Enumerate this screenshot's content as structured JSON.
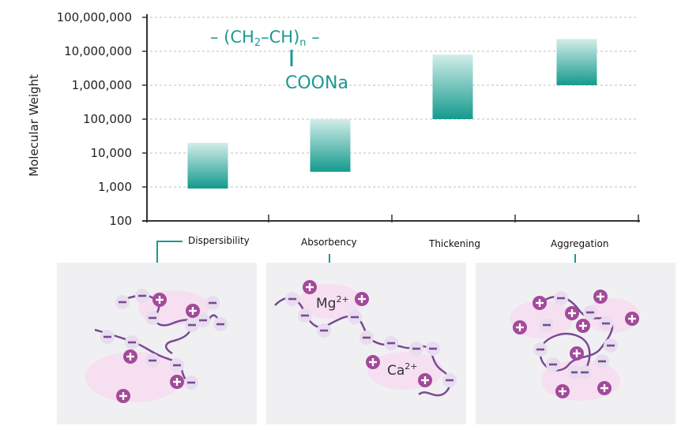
{
  "chart_data": {
    "type": "bar",
    "subtype": "floating-range",
    "scale": "log",
    "ylabel": "Molecular Weight",
    "xlabel": "",
    "title": "",
    "ylim": [
      100,
      100000000
    ],
    "y_ticks": [
      100,
      1000,
      10000,
      100000,
      1000000,
      10000000,
      100000000
    ],
    "y_tick_labels": [
      "100",
      "1,000",
      "10,000",
      "100,000",
      "1,000,000",
      "10,000,000",
      "100,000,000"
    ],
    "categories": [
      "Dispersibility",
      "Absorbency",
      "Thickening",
      "Aggregation"
    ],
    "ranges": [
      {
        "low": 900,
        "high": 20000
      },
      {
        "low": 2800,
        "high": 100000
      },
      {
        "low": 100000,
        "high": 8000000
      },
      {
        "low": 1000000,
        "high": 23000000
      }
    ],
    "grid": true,
    "colors": {
      "bar_top": "#d2ede9",
      "bar_bottom": "#149a8e",
      "grid": "#bfbfbf",
      "axis": "#333333"
    }
  },
  "formula": {
    "chain": "– (CH",
    "sub2": "2",
    "chain2": "–CH)",
    "subn": "n",
    "tail": " –",
    "side_group": "COONa"
  },
  "panels": {
    "absorbency_ions": {
      "mg": "Mg",
      "mg_sup": "2+",
      "ca": "Ca",
      "ca_sup": "2+"
    }
  },
  "colors": {
    "panel_bg": "#f0f0f3",
    "blob": "#f6dff0",
    "chain": "#7a4a93",
    "negative_ion": "#e7ddef",
    "negative_sign": "#7a4a93",
    "positive_ion": "#a24a9a",
    "arrow": "#1a9a92"
  }
}
